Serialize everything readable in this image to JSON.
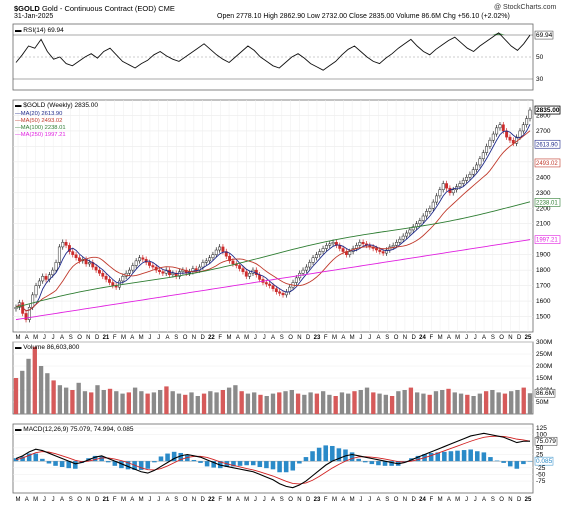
{
  "header": {
    "symbol": "$GOLD",
    "name": "Gold - Continuous Contract (EOD)",
    "exchange": "CME",
    "date": "31-Jan-2025",
    "watermark": "@ StockCharts.com",
    "open_label": "Open",
    "open": "2778.10",
    "high_label": "High",
    "high": "2862.90",
    "low_label": "Low",
    "low": "2732.00",
    "close_label": "Close",
    "close": "2835.00",
    "volume_label": "Volume",
    "volume": "86.6M",
    "chg_label": "Chg",
    "chg": "+56.10 (+2.02%)"
  },
  "colors": {
    "up": "#222222",
    "down": "#cc2b2b",
    "ma20": "#1f2a8a",
    "ma50": "#c0392b",
    "ma100": "#2e7d32",
    "ma250": "#e020e0",
    "rsi_fill": "#2e7d32",
    "macd": "#000000",
    "signal": "#d22222",
    "hist": "#2a8ac8",
    "vol_up": "#8a8a8a",
    "vol_down": "#d65a5a"
  },
  "chart_data": [
    {
      "type": "line",
      "panel": "rsi",
      "legend": "RSI(14) 69.94",
      "ylim": [
        20,
        80
      ],
      "ticks": [
        {
          "v": 70,
          "label": "70"
        },
        {
          "v": 50,
          "label": "50"
        },
        {
          "v": 30,
          "label": "30"
        }
      ],
      "last_label": "69.94",
      "values": [
        45,
        52,
        60,
        58,
        66,
        55,
        48,
        50,
        44,
        42,
        46,
        50,
        53,
        49,
        55,
        58,
        52,
        46,
        43,
        40,
        44,
        47,
        52,
        55,
        51,
        48,
        46,
        50,
        54,
        58,
        62,
        57,
        52,
        48,
        45,
        50,
        55,
        60,
        56,
        50,
        46,
        42,
        40,
        45,
        50,
        53,
        49,
        44,
        41,
        38,
        42,
        46,
        52,
        57,
        60,
        55,
        50,
        46,
        44,
        49,
        53,
        58,
        62,
        66,
        60,
        55,
        52,
        57,
        61,
        65,
        68,
        63,
        58,
        55,
        60,
        64,
        68,
        72,
        66,
        60,
        56,
        62,
        69.94
      ]
    },
    {
      "type": "line",
      "panel": "price",
      "title": "$GOLD (Weekly) 2835.00",
      "ylim": [
        1400,
        2900
      ],
      "ticks": [
        {
          "v": 2800,
          "label": "2800"
        },
        {
          "v": 2700,
          "label": "2700"
        },
        {
          "v": 2600,
          "label": "2600"
        },
        {
          "v": 2500,
          "label": "2500"
        },
        {
          "v": 2400,
          "label": "2400"
        },
        {
          "v": 2300,
          "label": "2300"
        },
        {
          "v": 2200,
          "label": "2200"
        },
        {
          "v": 2100,
          "label": "2100"
        },
        {
          "v": 2000,
          "label": "2000"
        },
        {
          "v": 1900,
          "label": "1900"
        },
        {
          "v": 1800,
          "label": "1800"
        },
        {
          "v": 1700,
          "label": "1700"
        },
        {
          "v": 1600,
          "label": "1600"
        },
        {
          "v": 1500,
          "label": "1500"
        }
      ],
      "x_labels": [
        "M",
        "A",
        "M",
        "J",
        "J",
        "A",
        "S",
        "O",
        "N",
        "D",
        "21",
        "F",
        "M",
        "A",
        "M",
        "J",
        "J",
        "A",
        "S",
        "O",
        "N",
        "D",
        "22",
        "F",
        "M",
        "A",
        "M",
        "J",
        "J",
        "A",
        "S",
        "O",
        "N",
        "D",
        "23",
        "F",
        "M",
        "A",
        "M",
        "J",
        "J",
        "A",
        "S",
        "O",
        "N",
        "D",
        "24",
        "F",
        "M",
        "A",
        "M",
        "J",
        "J",
        "A",
        "S",
        "O",
        "N",
        "D",
        "25"
      ],
      "close": [
        1560,
        1590,
        1520,
        1480,
        1560,
        1640,
        1700,
        1730,
        1760,
        1740,
        1770,
        1800,
        1850,
        1950,
        1980,
        1960,
        1920,
        1900,
        1880,
        1860,
        1870,
        1840,
        1850,
        1820,
        1800,
        1780,
        1760,
        1740,
        1720,
        1700,
        1690,
        1730,
        1760,
        1780,
        1800,
        1830,
        1860,
        1880,
        1870,
        1850,
        1830,
        1820,
        1800,
        1790,
        1780,
        1800,
        1770,
        1780,
        1760,
        1790,
        1800,
        1780,
        1790,
        1810,
        1800,
        1820,
        1850,
        1860,
        1880,
        1900,
        1930,
        1950,
        1920,
        1890,
        1860,
        1840,
        1830,
        1810,
        1790,
        1760,
        1780,
        1800,
        1770,
        1740,
        1720,
        1710,
        1700,
        1680,
        1660,
        1650,
        1640,
        1660,
        1690,
        1720,
        1750,
        1780,
        1800,
        1820,
        1850,
        1880,
        1900,
        1920,
        1940,
        1960,
        1970,
        1980,
        1960,
        1940,
        1920,
        1900,
        1920,
        1940,
        1960,
        1980,
        1970,
        1960,
        1950,
        1940,
        1930,
        1920,
        1910,
        1930,
        1950,
        1960,
        1980,
        2000,
        2020,
        2040,
        2060,
        2080,
        2100,
        2120,
        2150,
        2180,
        2200,
        2240,
        2280,
        2320,
        2360,
        2330,
        2300,
        2320,
        2340,
        2360,
        2380,
        2400,
        2420,
        2450,
        2480,
        2520,
        2560,
        2600,
        2640,
        2680,
        2720,
        2740,
        2700,
        2660,
        2640,
        2620,
        2660,
        2700,
        2740,
        2780,
        2835
      ],
      "series": [
        {
          "name": "MA(20) 2613.90",
          "last_label": "2613.90"
        },
        {
          "name": "MA(50) 2493.02",
          "last_label": "2493.02"
        },
        {
          "name": "MA(100) 2238.01",
          "last_label": "2238.01"
        },
        {
          "name": "MA(250) 1997.21",
          "last_label": "1997.21"
        }
      ],
      "close_label": "2835.00"
    },
    {
      "type": "bar",
      "panel": "volume",
      "legend": "Volume 86,603,800",
      "ylim": [
        0,
        300
      ],
      "ticks": [
        {
          "v": 300,
          "label": "300M"
        },
        {
          "v": 250,
          "label": "250M"
        },
        {
          "v": 200,
          "label": "200M"
        },
        {
          "v": 150,
          "label": "150M"
        },
        {
          "v": 100,
          "label": "100M"
        },
        {
          "v": 50,
          "label": "50M"
        }
      ],
      "last_label": "86.6M",
      "values": [
        150,
        180,
        230,
        280,
        200,
        170,
        140,
        120,
        110,
        100,
        130,
        95,
        90,
        120,
        100,
        105,
        95,
        85,
        90,
        110,
        95,
        85,
        90,
        100,
        115,
        95,
        85,
        80,
        90,
        75,
        85,
        95,
        90,
        100,
        110,
        120,
        95,
        85,
        90,
        80,
        75,
        85,
        90,
        95,
        100,
        85,
        80,
        90,
        85,
        95,
        80,
        75,
        90,
        85,
        95,
        100,
        110,
        90,
        85,
        80,
        75,
        95,
        100,
        110,
        90,
        85,
        80,
        95,
        100,
        105,
        90,
        85,
        80,
        75,
        85,
        95,
        100,
        90,
        85,
        95,
        100,
        110,
        86.6
      ]
    },
    {
      "type": "line",
      "panel": "macd",
      "legend": "MACD(12,26,9) 75.079, 74.994, 0.085",
      "ylim": [
        -120,
        140
      ],
      "ticks": [
        {
          "v": 125,
          "label": "125"
        },
        {
          "v": 100,
          "label": "100"
        },
        {
          "v": 50,
          "label": "50"
        },
        {
          "v": 25,
          "label": "25"
        },
        {
          "v": 0,
          "label": "0"
        },
        {
          "v": -25,
          "label": "-25"
        },
        {
          "v": -50,
          "label": "-50"
        },
        {
          "v": -75,
          "label": "-75"
        }
      ],
      "last_label": "75.079",
      "hist_label": "0.085",
      "macd": [
        10,
        20,
        35,
        45,
        40,
        30,
        20,
        10,
        0,
        -10,
        -5,
        5,
        15,
        20,
        10,
        0,
        -10,
        -20,
        -30,
        -40,
        -45,
        -35,
        -20,
        -5,
        10,
        20,
        25,
        20,
        15,
        5,
        -5,
        -15,
        -20,
        -25,
        -30,
        -35,
        -40,
        -50,
        -60,
        -70,
        -85,
        -95,
        -100,
        -90,
        -75,
        -55,
        -35,
        -15,
        0,
        10,
        20,
        25,
        20,
        15,
        10,
        5,
        0,
        -5,
        -10,
        -5,
        5,
        15,
        25,
        35,
        45,
        55,
        65,
        75,
        85,
        95,
        100,
        105,
        100,
        95,
        90,
        80,
        70,
        75,
        75.079
      ],
      "signal": [
        5,
        12,
        22,
        32,
        36,
        34,
        28,
        20,
        12,
        3,
        -2,
        0,
        6,
        12,
        12,
        8,
        2,
        -6,
        -15,
        -25,
        -32,
        -33,
        -28,
        -18,
        -6,
        6,
        14,
        18,
        18,
        14,
        6,
        -3,
        -10,
        -16,
        -22,
        -28,
        -33,
        -40,
        -48,
        -56,
        -66,
        -76,
        -84,
        -86,
        -82,
        -72,
        -58,
        -42,
        -26,
        -12,
        0,
        10,
        16,
        17,
        15,
        12,
        8,
        3,
        -2,
        -3,
        0,
        6,
        13,
        21,
        30,
        39,
        48,
        57,
        66,
        75,
        83,
        90,
        93,
        94,
        93,
        89,
        83,
        80,
        74.994
      ]
    }
  ]
}
